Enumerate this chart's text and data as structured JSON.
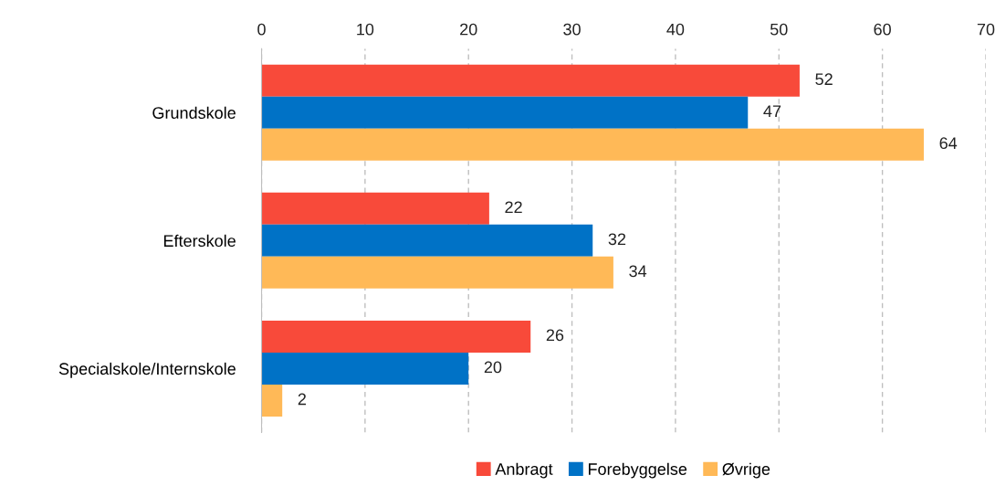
{
  "chart_data": {
    "type": "bar",
    "orientation": "horizontal",
    "categories": [
      "Grundskole",
      "Efterskole",
      "Specialskole/Internskole"
    ],
    "series": [
      {
        "name": "Anbragt",
        "color": "#f84a3a",
        "values": [
          52,
          22,
          26
        ]
      },
      {
        "name": "Forebyggelse",
        "color": "#0072c6",
        "values": [
          47,
          32,
          20
        ]
      },
      {
        "name": "Øvrige",
        "color": "#ffb957",
        "values": [
          64,
          34,
          2
        ]
      }
    ],
    "xlim": [
      0,
      70
    ],
    "xticks": [
      0,
      10,
      20,
      30,
      40,
      50,
      60,
      70
    ],
    "grid": "x",
    "legend": "bottom",
    "data_labels": true
  }
}
